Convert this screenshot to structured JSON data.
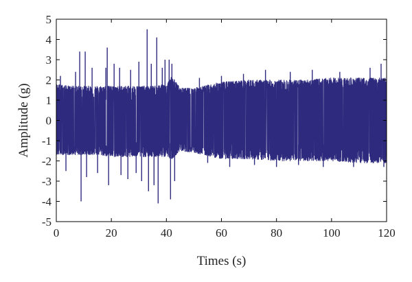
{
  "chart_data": {
    "type": "line",
    "title": "",
    "xlabel": "Times (s)",
    "ylabel": "Amplitude (g)",
    "xlim": [
      0,
      120
    ],
    "ylim": [
      -5,
      5
    ],
    "xticks": [
      0,
      20,
      40,
      60,
      80,
      100,
      120
    ],
    "yticks": [
      -5,
      -4,
      -3,
      -2,
      -1,
      0,
      1,
      2,
      3,
      4,
      5
    ],
    "grid": false,
    "legend": "none",
    "series": [
      {
        "color": "#2e2a7e",
        "envelope": {
          "x": [
            0,
            5,
            10,
            15,
            20,
            25,
            30,
            35,
            40,
            42,
            45,
            50,
            60,
            70,
            80,
            90,
            100,
            110,
            120
          ],
          "upper": [
            1.8,
            1.7,
            1.7,
            1.7,
            1.7,
            1.7,
            1.7,
            1.7,
            1.8,
            2.2,
            1.6,
            1.6,
            1.9,
            2.0,
            2.0,
            2.0,
            2.1,
            2.1,
            2.1
          ],
          "lower": [
            -1.7,
            -1.7,
            -1.7,
            -1.7,
            -1.8,
            -1.8,
            -1.8,
            -1.8,
            -1.8,
            -1.9,
            -1.5,
            -1.6,
            -1.9,
            -1.9,
            -2.0,
            -2.0,
            -2.0,
            -2.1,
            -2.1
          ]
        },
        "peaks": [
          {
            "x": 1.5,
            "y": 2.2
          },
          {
            "x": 3.5,
            "y": -2.5
          },
          {
            "x": 7,
            "y": 2.4
          },
          {
            "x": 8.5,
            "y": 3.4
          },
          {
            "x": 9,
            "y": -4.0
          },
          {
            "x": 10.5,
            "y": 3.4
          },
          {
            "x": 11,
            "y": -2.8
          },
          {
            "x": 13,
            "y": 2.6
          },
          {
            "x": 15,
            "y": -2.6
          },
          {
            "x": 18,
            "y": 2.6
          },
          {
            "x": 18.5,
            "y": 3.6
          },
          {
            "x": 19,
            "y": -3.2
          },
          {
            "x": 21,
            "y": 2.8
          },
          {
            "x": 23,
            "y": 2.6
          },
          {
            "x": 23.5,
            "y": -2.7
          },
          {
            "x": 26,
            "y": -2.9
          },
          {
            "x": 27,
            "y": 2.5
          },
          {
            "x": 29,
            "y": -2.6
          },
          {
            "x": 30,
            "y": 2.9
          },
          {
            "x": 31,
            "y": -3.0
          },
          {
            "x": 33,
            "y": 4.5
          },
          {
            "x": 33.5,
            "y": -3.5
          },
          {
            "x": 34.5,
            "y": 2.8
          },
          {
            "x": 35.5,
            "y": -3.2
          },
          {
            "x": 36.5,
            "y": 4.1
          },
          {
            "x": 37,
            "y": -4.1
          },
          {
            "x": 38.5,
            "y": 2.6
          },
          {
            "x": 39.5,
            "y": 3.0
          },
          {
            "x": 41,
            "y": 3.0
          },
          {
            "x": 41.5,
            "y": -3.9
          },
          {
            "x": 42,
            "y": 2.8
          },
          {
            "x": 43,
            "y": -3.0
          },
          {
            "x": 52,
            "y": 2.1
          },
          {
            "x": 55,
            "y": -2.1
          },
          {
            "x": 60,
            "y": 2.2
          },
          {
            "x": 63,
            "y": -2.3
          },
          {
            "x": 68,
            "y": 2.3
          },
          {
            "x": 72,
            "y": -2.2
          },
          {
            "x": 76,
            "y": 2.5
          },
          {
            "x": 80,
            "y": -2.3
          },
          {
            "x": 85,
            "y": 2.4
          },
          {
            "x": 88,
            "y": -2.2
          },
          {
            "x": 93,
            "y": 2.5
          },
          {
            "x": 97,
            "y": -2.3
          },
          {
            "x": 103,
            "y": 2.4
          },
          {
            "x": 108,
            "y": -2.3
          },
          {
            "x": 114,
            "y": 2.6
          },
          {
            "x": 118,
            "y": 2.8
          },
          {
            "x": 119,
            "y": -2.3
          }
        ]
      }
    ]
  }
}
